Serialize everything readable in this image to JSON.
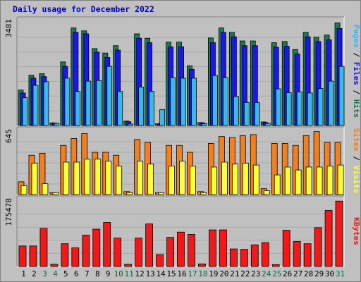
{
  "chart_data": {
    "type": "bar",
    "title": "Daily usage for December 2022",
    "categories": [
      "1",
      "2",
      "3",
      "4",
      "5",
      "6",
      "7",
      "8",
      "9",
      "10",
      "11",
      "12",
      "13",
      "14",
      "15",
      "16",
      "17",
      "18",
      "19",
      "20",
      "21",
      "22",
      "23",
      "24",
      "25",
      "26",
      "27",
      "28",
      "29",
      "30",
      "31"
    ],
    "weekend_days": [
      "3",
      "4",
      "10",
      "11",
      "17",
      "18",
      "24",
      "25",
      "31"
    ],
    "colors": {
      "hits": "#207850",
      "files": "#1818e8",
      "pages": "#38b8ec",
      "visits": "#f08020",
      "sites": "#ffff38",
      "kbytes": "#f01818",
      "plot_bg": "#c0c0c0",
      "title": "#0000cc",
      "weekday_label": "#000000",
      "weekend_label": "#007040"
    },
    "panels": [
      {
        "id": "hits-files-pages",
        "ymax_label": "3481",
        "ymax": 3481,
        "right_label": [
          {
            "text": "Pages",
            "color": "#38b8ec"
          },
          {
            "text": " / ",
            "color": "#000000"
          },
          {
            "text": "Files",
            "color": "#1818e8"
          },
          {
            "text": " / ",
            "color": "#000000"
          },
          {
            "text": "Hits",
            "color": "#207850"
          }
        ],
        "series": [
          {
            "name": "Hits",
            "values": [
              1200,
              1700,
              1750,
              90,
              2150,
              3300,
              3200,
              2600,
              2450,
              2700,
              150,
              3100,
              2950,
              60,
              2820,
              2820,
              2020,
              100,
              2960,
              3300,
              3150,
              2860,
              2860,
              120,
              2800,
              2840,
              2570,
              3150,
              2990,
              3060,
              3470
            ]
          },
          {
            "name": "Files",
            "values": [
              1100,
              1600,
              1650,
              80,
              2000,
              3150,
              3100,
              2480,
              2300,
              2550,
              130,
              2950,
              2800,
              50,
              2660,
              2660,
              1900,
              90,
              2800,
              3150,
              3000,
              2700,
              2700,
              100,
              2650,
              2680,
              2420,
              3000,
              2840,
              2900,
              3280
            ]
          },
          {
            "name": "Pages",
            "values": [
              940,
              1360,
              1480,
              70,
              1600,
              1150,
              1500,
              1520,
              2000,
              1150,
              50,
              1300,
              1150,
              540,
              1620,
              1600,
              1600,
              60,
              1690,
              1620,
              980,
              780,
              780,
              70,
              1240,
              1110,
              1140,
              1100,
              1250,
              1500,
              2000
            ]
          }
        ]
      },
      {
        "id": "visits-sites",
        "ymax_label": "645",
        "ymax": 645,
        "right_label": [
          {
            "text": "Sites",
            "color": "#f08020"
          },
          {
            "text": " / ",
            "color": "#000000"
          },
          {
            "text": "Visits",
            "color": "#ffff38"
          }
        ],
        "series": [
          {
            "name": "Visits",
            "values": [
              130,
              400,
              420,
              20,
              500,
              570,
              620,
              430,
              430,
              400,
              30,
              560,
              530,
              20,
              500,
              500,
              430,
              30,
              520,
              590,
              580,
              600,
              610,
              60,
              520,
              520,
              500,
              600,
              640,
              530,
              530
            ]
          },
          {
            "name": "Sites",
            "values": [
              90,
              320,
              110,
              20,
              330,
              330,
              360,
              360,
              340,
              290,
              20,
              340,
              310,
              20,
              290,
              340,
              290,
              20,
              280,
              330,
              310,
              320,
              300,
              40,
              200,
              280,
              250,
              280,
              280,
              290,
              300
            ]
          }
        ]
      },
      {
        "id": "kbytes",
        "ymax_label": "175478",
        "ymax": 175478,
        "right_label": [
          {
            "text": "KBytes",
            "color": "#f01818"
          }
        ],
        "series": [
          {
            "name": "KBytes",
            "values": [
              55000,
              55000,
              102000,
              6000,
              61000,
              50000,
              84000,
              100000,
              118000,
              76000,
              6000,
              76000,
              114000,
              32000,
              78000,
              92000,
              86000,
              7000,
              98000,
              98000,
              47000,
              46000,
              58000,
              64000,
              5000,
              97000,
              67000,
              61000,
              104000,
              150000,
              175000
            ]
          }
        ]
      }
    ]
  }
}
